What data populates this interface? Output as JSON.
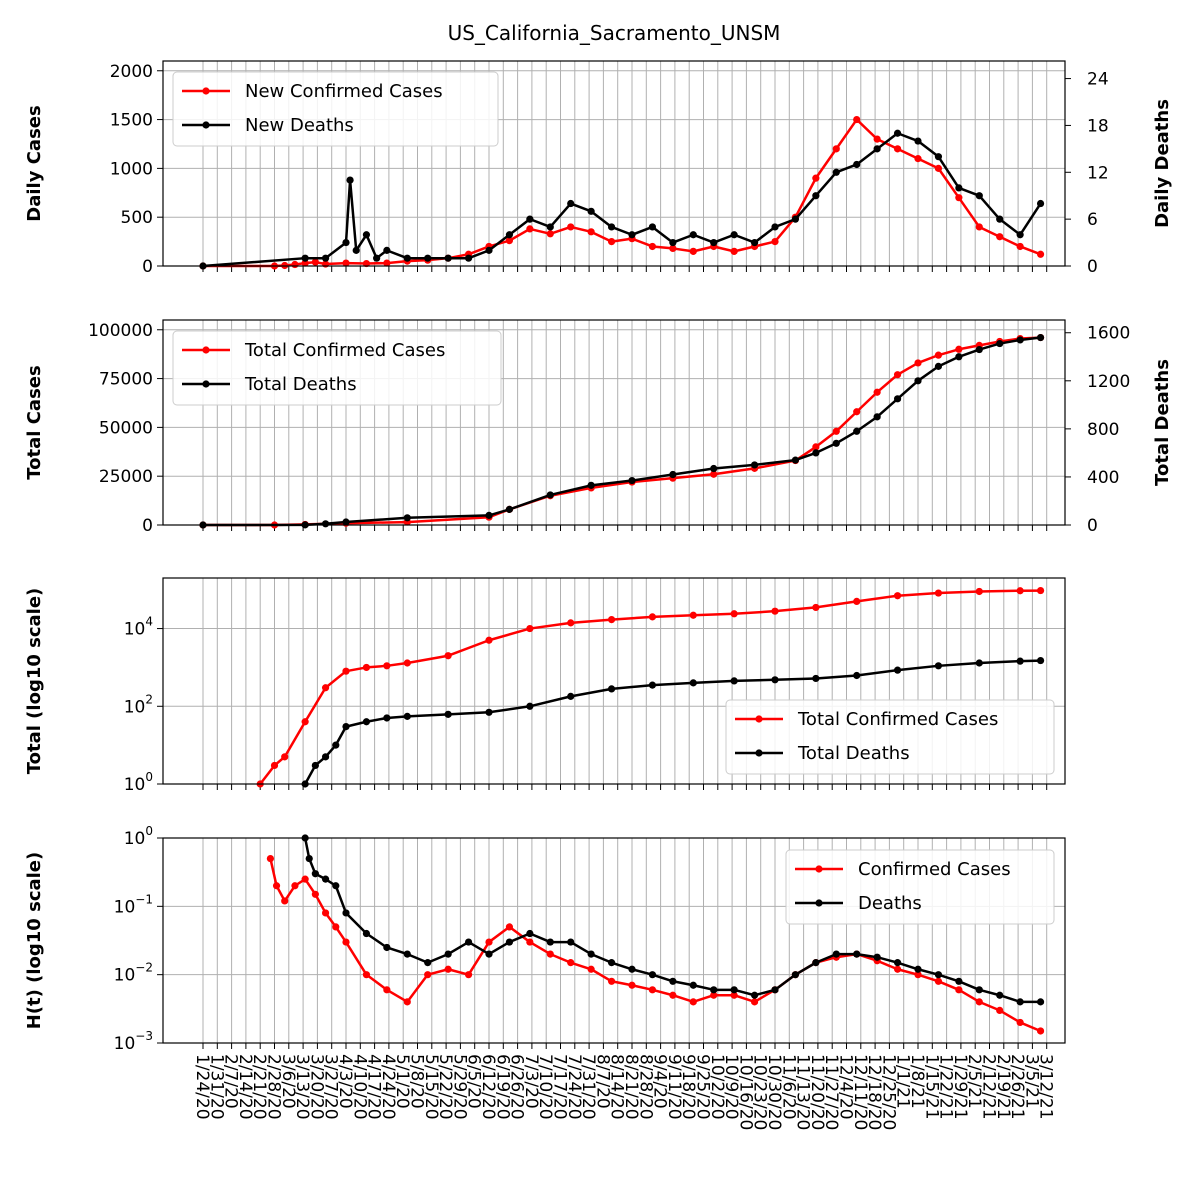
{
  "title": "US_California_Sacramento_UNSM",
  "colors": {
    "confirmed": "#ff0000",
    "deaths": "#000000",
    "grid": "#b0b0b0"
  },
  "chart_data": [
    {
      "type": "line",
      "panel": "daily",
      "ylabel": "Daily Cases",
      "ylabel_right": "Daily Deaths",
      "ylim": [
        0,
        2100
      ],
      "ylim_right": [
        0,
        26.25
      ],
      "yticks": [
        "0",
        "500",
        "1000",
        "1500",
        "2000"
      ],
      "yticks_right": [
        "0",
        "6",
        "12",
        "18",
        "24"
      ],
      "grid": true,
      "legend_placement": "upper-left",
      "series": [
        {
          "name": "New Confirmed Cases",
          "axis": "left",
          "color": "#ff0000",
          "x": [
            0,
            35,
            40,
            45,
            50,
            55,
            60,
            70,
            80,
            90,
            100,
            110,
            120,
            130,
            140,
            150,
            160,
            170,
            180,
            190,
            200,
            210,
            220,
            230,
            240,
            250,
            260,
            270,
            280,
            290,
            300,
            310,
            320,
            330,
            340,
            350,
            360,
            370,
            380,
            390,
            400,
            410
          ],
          "values": [
            0,
            0,
            5,
            15,
            30,
            40,
            20,
            30,
            25,
            30,
            50,
            60,
            80,
            120,
            200,
            260,
            380,
            330,
            400,
            350,
            250,
            280,
            200,
            180,
            150,
            200,
            150,
            200,
            250,
            500,
            900,
            1200,
            1500,
            1300,
            1200,
            1100,
            1000,
            700,
            400,
            300,
            200,
            120
          ]
        },
        {
          "name": "New Deaths",
          "axis": "right",
          "color": "#000000",
          "x": [
            0,
            50,
            60,
            70,
            72,
            75,
            80,
            85,
            90,
            100,
            110,
            120,
            130,
            140,
            150,
            160,
            170,
            180,
            190,
            200,
            210,
            220,
            230,
            240,
            250,
            260,
            270,
            280,
            290,
            300,
            310,
            320,
            330,
            340,
            350,
            360,
            370,
            380,
            390,
            400,
            410
          ],
          "values": [
            0,
            1,
            1,
            3,
            11,
            2,
            4,
            1,
            2,
            1,
            1,
            1,
            1,
            2,
            4,
            6,
            5,
            8,
            7,
            5,
            4,
            5,
            3,
            4,
            3,
            4,
            3,
            5,
            6,
            9,
            12,
            13,
            15,
            17,
            16,
            14,
            10,
            9,
            6,
            4,
            8
          ]
        }
      ]
    },
    {
      "type": "line",
      "panel": "total",
      "ylabel": "Total Cases",
      "ylabel_right": "Total Deaths",
      "ylim": [
        0,
        105000
      ],
      "ylim_right": [
        0,
        1706
      ],
      "yticks": [
        "0",
        "25000",
        "50000",
        "75000",
        "100000"
      ],
      "yticks_right": [
        "0",
        "400",
        "800",
        "1200",
        "1600"
      ],
      "grid": true,
      "legend_placement": "upper-left",
      "series": [
        {
          "name": "Total Confirmed Cases",
          "axis": "left",
          "color": "#ff0000",
          "x": [
            0,
            35,
            50,
            70,
            100,
            140,
            150,
            170,
            190,
            210,
            230,
            250,
            270,
            290,
            300,
            310,
            320,
            330,
            340,
            350,
            360,
            370,
            380,
            390,
            400,
            410
          ],
          "values": [
            0,
            0,
            300,
            900,
            1500,
            4000,
            8000,
            15000,
            19000,
            22000,
            24000,
            26000,
            29000,
            33000,
            40000,
            48000,
            58000,
            68000,
            77000,
            83000,
            87000,
            90000,
            92000,
            94000,
            95500,
            96000
          ]
        },
        {
          "name": "Total Deaths",
          "axis": "right",
          "color": "#000000",
          "x": [
            0,
            50,
            60,
            70,
            100,
            140,
            150,
            170,
            190,
            210,
            230,
            250,
            270,
            290,
            300,
            310,
            320,
            330,
            340,
            350,
            360,
            370,
            380,
            390,
            400,
            410
          ],
          "values": [
            0,
            1,
            10,
            25,
            60,
            80,
            130,
            250,
            330,
            370,
            420,
            470,
            500,
            540,
            600,
            680,
            780,
            900,
            1050,
            1200,
            1320,
            1400,
            1460,
            1510,
            1540,
            1560
          ]
        }
      ]
    },
    {
      "type": "line",
      "panel": "log",
      "ylabel": "Total (log10 scale)",
      "yscale": "log",
      "ylim": [
        1,
        200000
      ],
      "ytick_exponents": [
        "0",
        "2",
        "4"
      ],
      "grid": true,
      "legend_placement": "lower-right",
      "series": [
        {
          "name": "Total Confirmed Cases",
          "color": "#ff0000",
          "x": [
            28,
            35,
            40,
            50,
            60,
            70,
            80,
            90,
            100,
            120,
            140,
            160,
            180,
            200,
            220,
            240,
            260,
            280,
            300,
            320,
            340,
            360,
            380,
            400,
            410
          ],
          "values": [
            1,
            3,
            5,
            40,
            300,
            800,
            1000,
            1100,
            1300,
            2000,
            5000,
            10000,
            14000,
            17000,
            20000,
            22000,
            24000,
            28000,
            35000,
            50000,
            70000,
            82000,
            90000,
            94000,
            95000
          ]
        },
        {
          "name": "Total Deaths",
          "color": "#000000",
          "x": [
            50,
            55,
            60,
            65,
            70,
            80,
            90,
            100,
            120,
            140,
            160,
            180,
            200,
            220,
            240,
            260,
            280,
            300,
            320,
            340,
            360,
            380,
            400,
            410
          ],
          "values": [
            1,
            3,
            5,
            10,
            30,
            40,
            50,
            55,
            62,
            70,
            100,
            180,
            280,
            350,
            400,
            450,
            480,
            520,
            620,
            850,
            1100,
            1300,
            1450,
            1500
          ]
        }
      ]
    },
    {
      "type": "line",
      "panel": "hazard",
      "ylabel": "H(t) (log10 scale)",
      "yscale": "log",
      "ylim": [
        0.001,
        1
      ],
      "ytick_exponents": [
        "−3",
        "−2",
        "−1",
        "0"
      ],
      "grid": true,
      "legend_placement": "upper-right",
      "series": [
        {
          "name": "Confirmed Cases",
          "color": "#ff0000",
          "x": [
            33,
            36,
            40,
            45,
            50,
            55,
            60,
            65,
            70,
            80,
            90,
            100,
            110,
            120,
            130,
            140,
            150,
            160,
            170,
            180,
            190,
            200,
            210,
            220,
            230,
            240,
            250,
            260,
            270,
            280,
            290,
            300,
            310,
            320,
            330,
            340,
            350,
            360,
            370,
            380,
            390,
            400,
            410
          ],
          "values": [
            0.5,
            0.2,
            0.12,
            0.2,
            0.25,
            0.15,
            0.08,
            0.05,
            0.03,
            0.01,
            0.006,
            0.004,
            0.01,
            0.012,
            0.01,
            0.03,
            0.05,
            0.03,
            0.02,
            0.015,
            0.012,
            0.008,
            0.007,
            0.006,
            0.005,
            0.004,
            0.005,
            0.005,
            0.004,
            0.006,
            0.01,
            0.015,
            0.018,
            0.02,
            0.016,
            0.012,
            0.01,
            0.008,
            0.006,
            0.004,
            0.003,
            0.002,
            0.0015
          ]
        },
        {
          "name": "Deaths",
          "color": "#000000",
          "x": [
            50,
            52,
            55,
            60,
            65,
            70,
            80,
            90,
            100,
            110,
            120,
            130,
            140,
            150,
            160,
            170,
            180,
            190,
            200,
            210,
            220,
            230,
            240,
            250,
            260,
            270,
            280,
            290,
            300,
            310,
            320,
            330,
            340,
            350,
            360,
            370,
            380,
            390,
            400,
            410
          ],
          "values": [
            1,
            0.5,
            0.3,
            0.25,
            0.2,
            0.08,
            0.04,
            0.025,
            0.02,
            0.015,
            0.02,
            0.03,
            0.02,
            0.03,
            0.04,
            0.03,
            0.03,
            0.02,
            0.015,
            0.012,
            0.01,
            0.008,
            0.007,
            0.006,
            0.006,
            0.005,
            0.006,
            0.01,
            0.015,
            0.02,
            0.02,
            0.018,
            0.015,
            0.012,
            0.01,
            0.008,
            0.006,
            0.005,
            0.004,
            0.004
          ]
        }
      ]
    }
  ],
  "x_dates": [
    "1/24/20",
    "1/31/20",
    "2/7/20",
    "2/14/20",
    "2/21/20",
    "2/28/20",
    "3/6/20",
    "3/13/20",
    "3/20/20",
    "3/27/20",
    "4/3/20",
    "4/10/20",
    "4/17/20",
    "4/24/20",
    "5/1/20",
    "5/8/20",
    "5/15/20",
    "5/22/20",
    "5/29/20",
    "6/5/20",
    "6/12/20",
    "6/19/20",
    "6/26/20",
    "7/3/20",
    "7/10/20",
    "7/17/20",
    "7/24/20",
    "7/31/20",
    "8/7/20",
    "8/14/20",
    "8/21/20",
    "8/28/20",
    "9/4/20",
    "9/11/20",
    "9/18/20",
    "9/25/20",
    "10/2/20",
    "10/9/20",
    "10/16/20",
    "10/23/20",
    "10/30/20",
    "11/6/20",
    "11/13/20",
    "11/20/20",
    "11/27/20",
    "12/4/20",
    "12/11/20",
    "12/18/20",
    "12/25/20",
    "1/1/21",
    "1/8/21",
    "1/15/21",
    "1/22/21",
    "1/29/21",
    "2/5/21",
    "2/12/21",
    "2/19/21",
    "2/26/21",
    "3/5/21",
    "3/12/21"
  ],
  "x_note_days": "x values above are days since 1/24/20; ticks every 7 days"
}
